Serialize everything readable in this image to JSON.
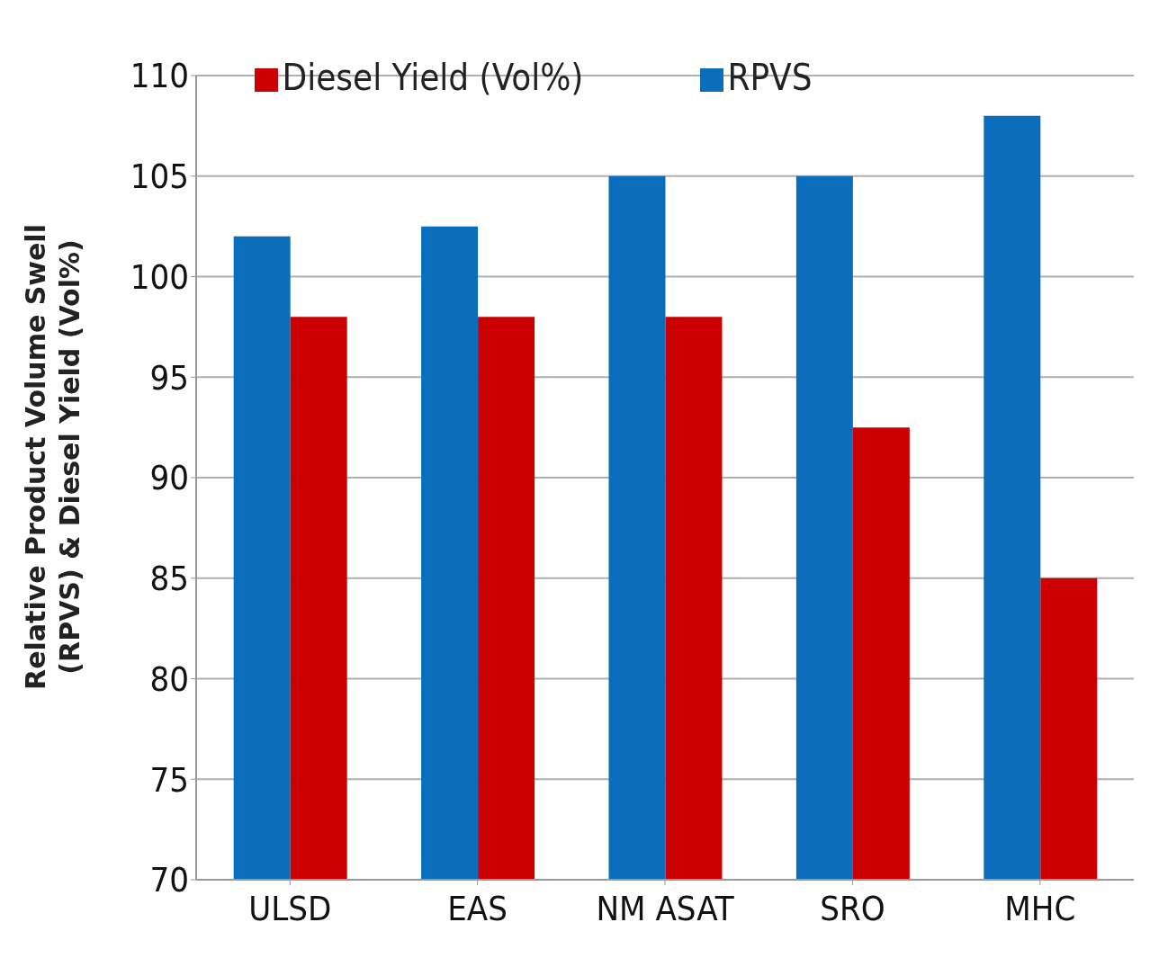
{
  "chart_data": {
    "type": "bar",
    "ylabel": "Relative Product Volume Swell (RPVS) & Diesel Yield (Vol%)",
    "categories": [
      "ULSD",
      "EAS",
      "NM ASAT",
      "SRO",
      "MHC"
    ],
    "series": [
      {
        "name": "RPVS",
        "color": "#0a6ebd",
        "values": [
          102,
          102.5,
          105,
          105,
          108
        ]
      },
      {
        "name": "Diesel Yield (Vol%)",
        "color": "#cc0000",
        "values": [
          98,
          98,
          98,
          92.5,
          85
        ]
      }
    ],
    "ylim": [
      70,
      110
    ],
    "yticks": [
      70,
      75,
      80,
      85,
      90,
      95,
      100,
      105,
      110
    ],
    "grid": "y",
    "legend": "top"
  }
}
